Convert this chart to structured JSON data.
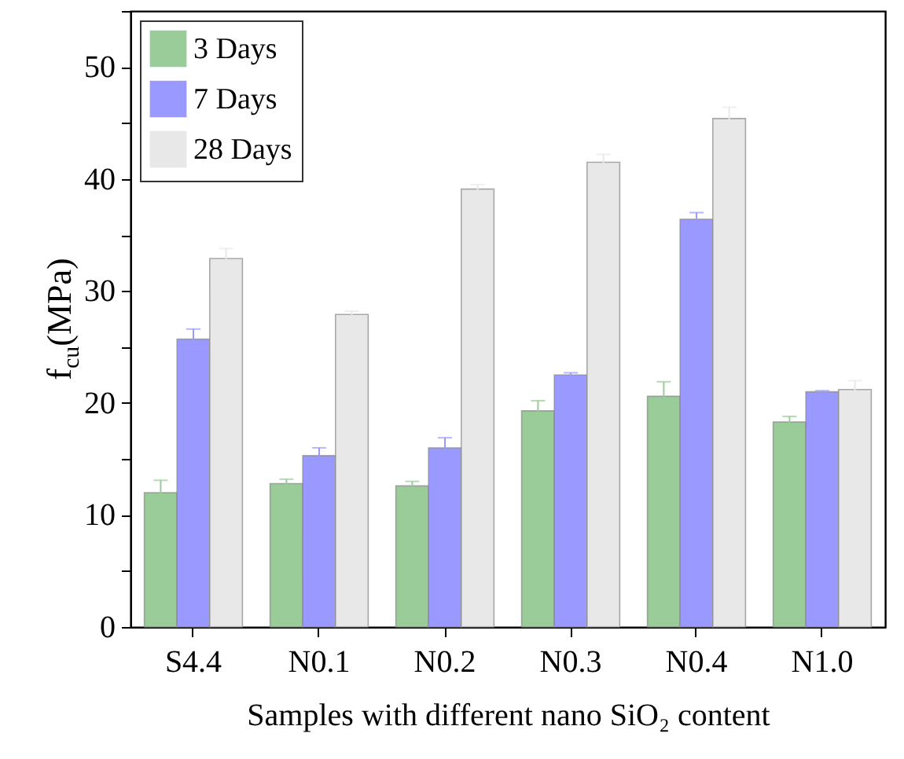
{
  "chart_data": {
    "type": "bar",
    "xlabel": "Samples with different nano SiO₂ content",
    "ylabel": "f$_{cu}$(MPa)",
    "categories": [
      "S4.4",
      "N0.1",
      "N0.2",
      "N0.3",
      "N0.4",
      "N1.0"
    ],
    "series": [
      {
        "name": "3 Days",
        "color": "#99cc99",
        "values": [
          12.0,
          12.8,
          12.6,
          19.3,
          20.6,
          18.3
        ],
        "errors": [
          1.1,
          0.4,
          0.4,
          0.9,
          1.3,
          0.5
        ]
      },
      {
        "name": "7 Days",
        "color": "#9999ff",
        "values": [
          25.7,
          15.3,
          16.0,
          22.5,
          36.4,
          21.0
        ],
        "errors": [
          0.9,
          0.7,
          0.9,
          0.2,
          0.6,
          0.1
        ]
      },
      {
        "name": "28 Days",
        "color": "#e8e8e8",
        "values": [
          32.9,
          27.9,
          39.1,
          41.5,
          45.4,
          21.2
        ],
        "errors": [
          0.9,
          0.3,
          0.4,
          0.7,
          1.0,
          0.8
        ]
      }
    ],
    "ylim": [
      0,
      55
    ],
    "yticks": [
      0,
      {
        "value": 5,
        "label": null
      },
      10,
      {
        "value": 15,
        "label": null
      },
      20,
      {
        "value": 25,
        "label": null
      },
      30,
      {
        "value": 35,
        "label": null
      },
      40,
      {
        "value": 45,
        "label": null
      },
      50,
      {
        "value": 55,
        "label": null
      }
    ],
    "legend": "top left",
    "grid": false
  }
}
